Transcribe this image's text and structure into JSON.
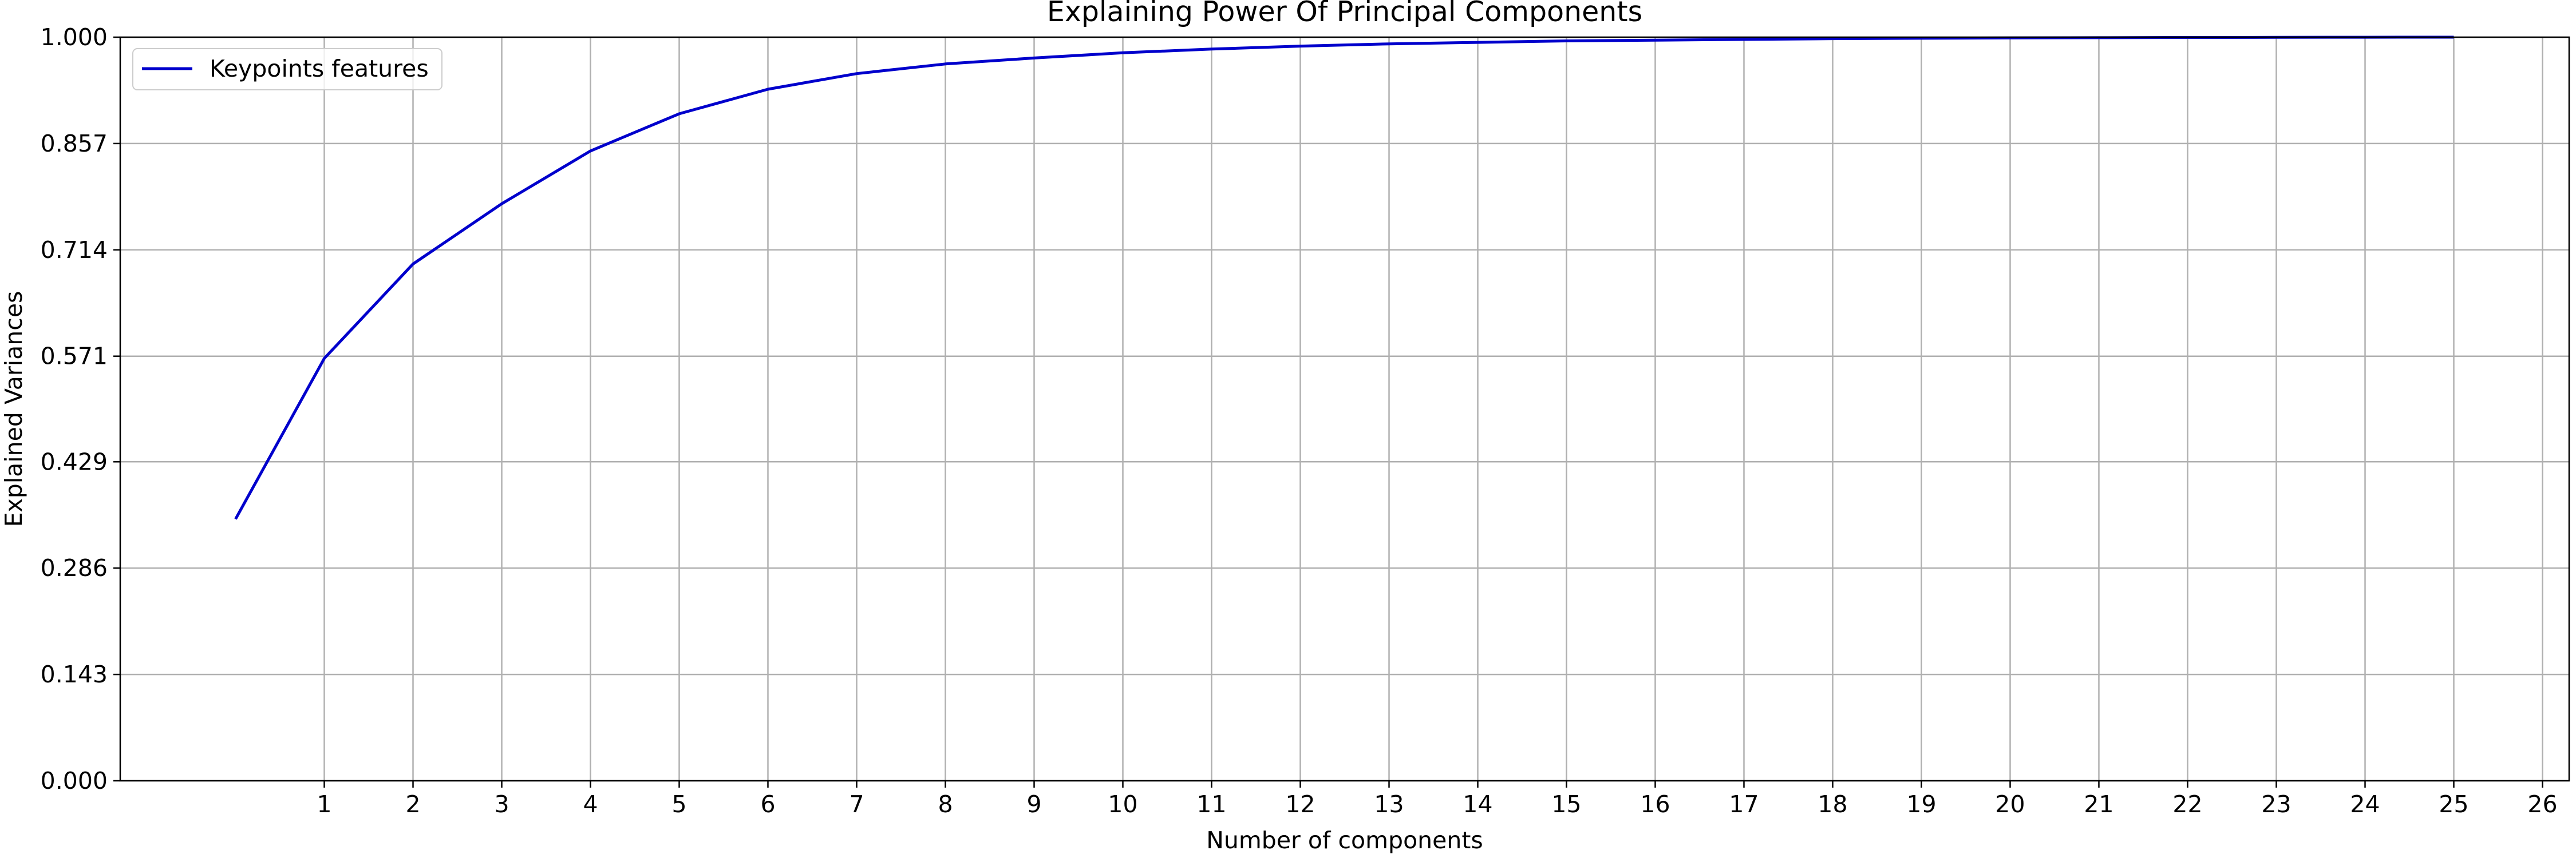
{
  "chart_data": {
    "type": "line",
    "title": "Explaining Power Of Principal Components",
    "xlabel": "Number of components",
    "ylabel": "Explained Variances",
    "xlim": [
      -1.3,
      26.3
    ],
    "ylim": [
      0,
      1.0
    ],
    "x_ticks": [
      1,
      2,
      3,
      4,
      5,
      6,
      7,
      8,
      9,
      10,
      11,
      12,
      13,
      14,
      15,
      16,
      17,
      18,
      19,
      20,
      21,
      22,
      23,
      24,
      25,
      26
    ],
    "y_ticks": [
      0.0,
      0.143,
      0.286,
      0.429,
      0.571,
      0.714,
      0.857,
      1.0
    ],
    "y_tick_labels": [
      "0.000",
      "0.143",
      "0.286",
      "0.429",
      "0.571",
      "0.714",
      "0.857",
      "1.000"
    ],
    "grid": true,
    "legend_position": "top-left",
    "series": [
      {
        "name": "Keypoints features",
        "color": "#0000cc",
        "x": [
          0,
          1,
          2,
          3,
          4,
          5,
          6,
          7,
          8,
          9,
          10,
          11,
          12,
          13,
          14,
          15,
          16,
          17,
          18,
          19,
          20,
          21,
          22,
          23,
          24,
          25
        ],
        "values": [
          0.352,
          0.568,
          0.695,
          0.776,
          0.847,
          0.897,
          0.93,
          0.951,
          0.964,
          0.972,
          0.979,
          0.984,
          0.988,
          0.991,
          0.993,
          0.995,
          0.996,
          0.997,
          0.998,
          0.9985,
          0.999,
          0.9993,
          0.9996,
          0.9998,
          0.9999,
          1.0
        ]
      }
    ]
  }
}
